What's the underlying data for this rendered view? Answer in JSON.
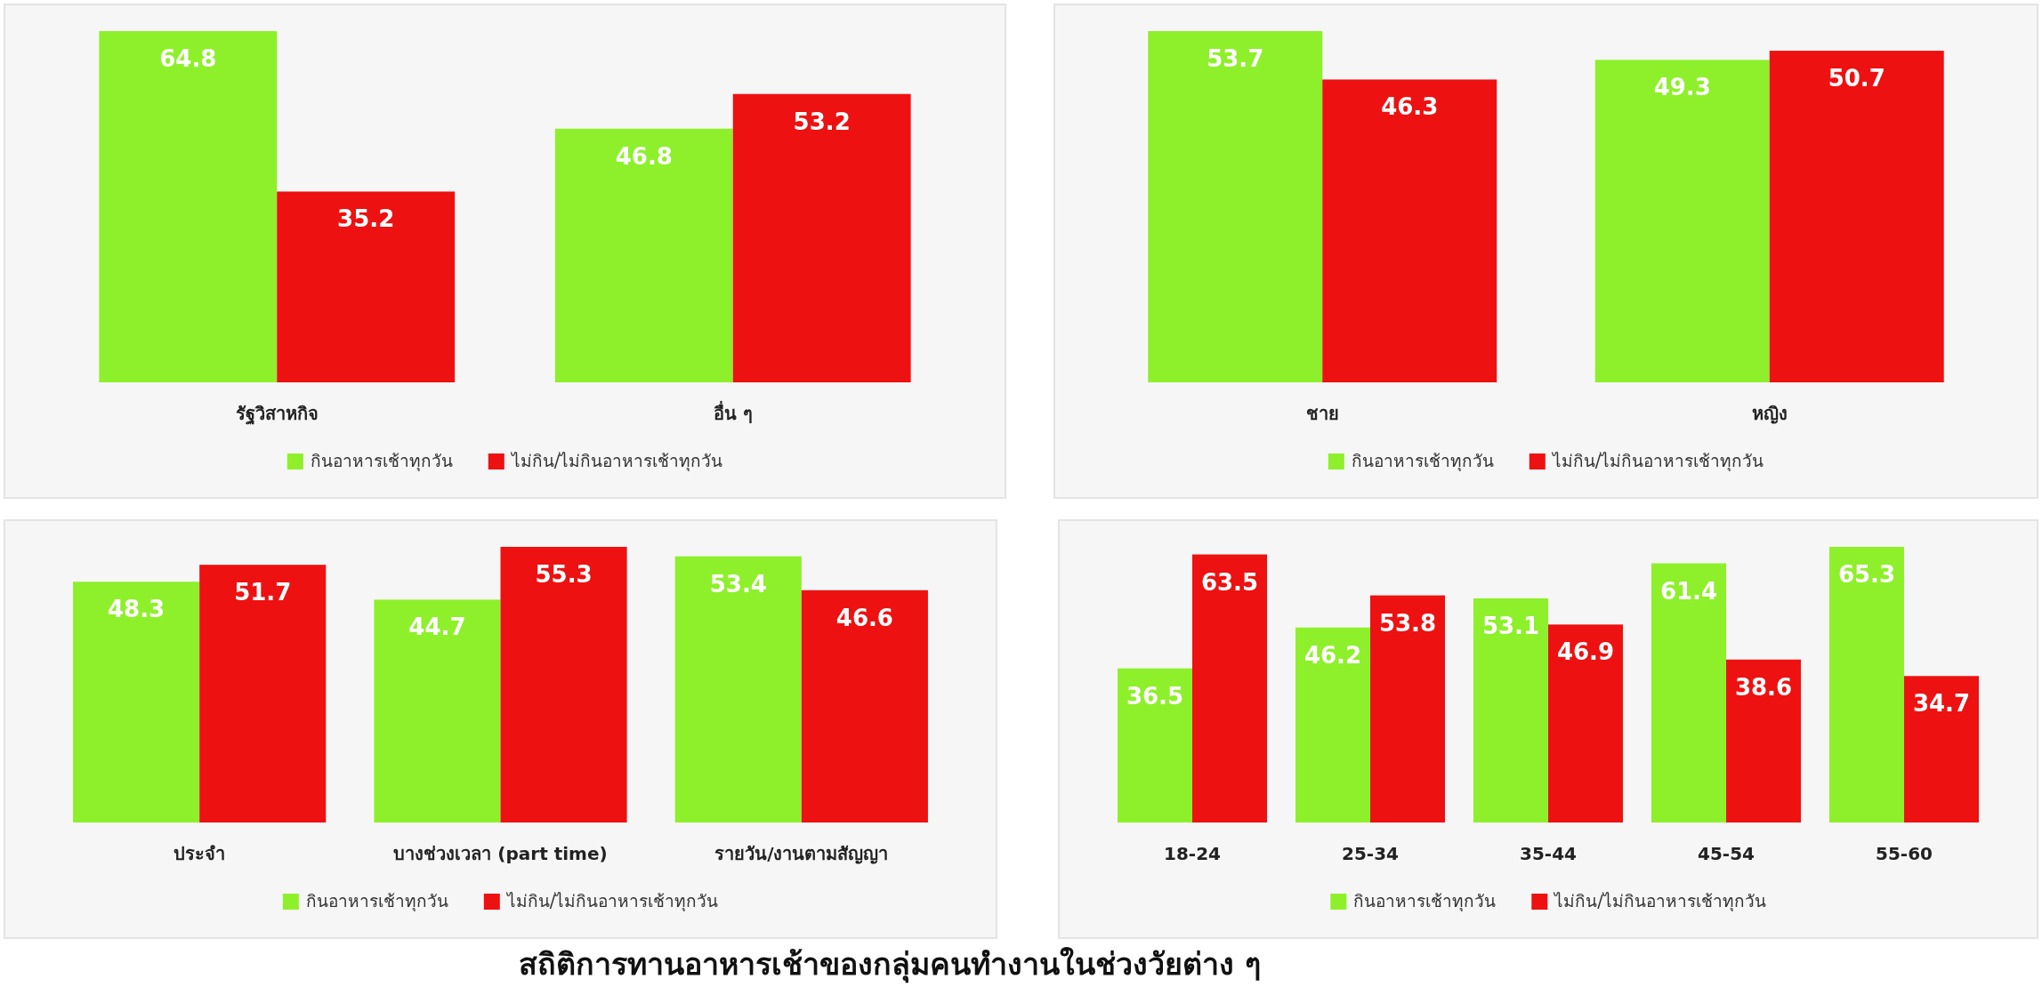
{
  "chart_data": [
    {
      "type": "bar",
      "categories": [
        "รัฐวิสาหกิจ",
        "อื่น ๆ"
      ],
      "series": [
        {
          "name": "กินอาหารเช้าทุกวัน",
          "color": "#8ef02a",
          "values": [
            64.8,
            46.8
          ]
        },
        {
          "name": "ไม่กิน/ไม่กินอาหารเช้าทุกวัน",
          "color": "#ee1111",
          "values": [
            35.2,
            53.2
          ]
        }
      ],
      "data_labels": true,
      "legend": "bottom"
    },
    {
      "type": "bar",
      "categories": [
        "ชาย",
        "หญิง"
      ],
      "series": [
        {
          "name": "กินอาหารเช้าทุกวัน",
          "color": "#8ef02a",
          "values": [
            53.7,
            49.3
          ]
        },
        {
          "name": "ไม่กิน/ไม่กินอาหารเช้าทุกวัน",
          "color": "#ee1111",
          "values": [
            46.3,
            50.7
          ]
        }
      ],
      "data_labels": true,
      "legend": "bottom"
    },
    {
      "type": "bar",
      "categories": [
        "ประจำ",
        "บางช่วงเวลา (part time)",
        "รายวัน/งานตามสัญญา"
      ],
      "series": [
        {
          "name": "กินอาหารเช้าทุกวัน",
          "color": "#8ef02a",
          "values": [
            48.3,
            44.7,
            53.4
          ]
        },
        {
          "name": "ไม่กิน/ไม่กินอาหารเช้าทุกวัน",
          "color": "#ee1111",
          "values": [
            51.7,
            55.3,
            46.6
          ]
        }
      ],
      "data_labels": true,
      "legend": "bottom"
    },
    {
      "type": "bar",
      "categories": [
        "18-24",
        "25-34",
        "35-44",
        "45-54",
        "55-60"
      ],
      "series": [
        {
          "name": "กินอาหารเช้าทุกวัน",
          "color": "#8ef02a",
          "values": [
            36.5,
            46.2,
            53.1,
            61.4,
            65.3
          ]
        },
        {
          "name": "ไม่กิน/ไม่กินอาหารเช้าทุกวัน",
          "color": "#ee1111",
          "values": [
            63.5,
            53.8,
            46.9,
            38.6,
            34.7
          ]
        }
      ],
      "data_labels": true,
      "legend": "bottom"
    },
    {
      "type": "other",
      "title": "สถิติการทานอาหารเช้าของกลุ่มคนทำงานในช่วงวัยต่าง ๆ"
    }
  ]
}
